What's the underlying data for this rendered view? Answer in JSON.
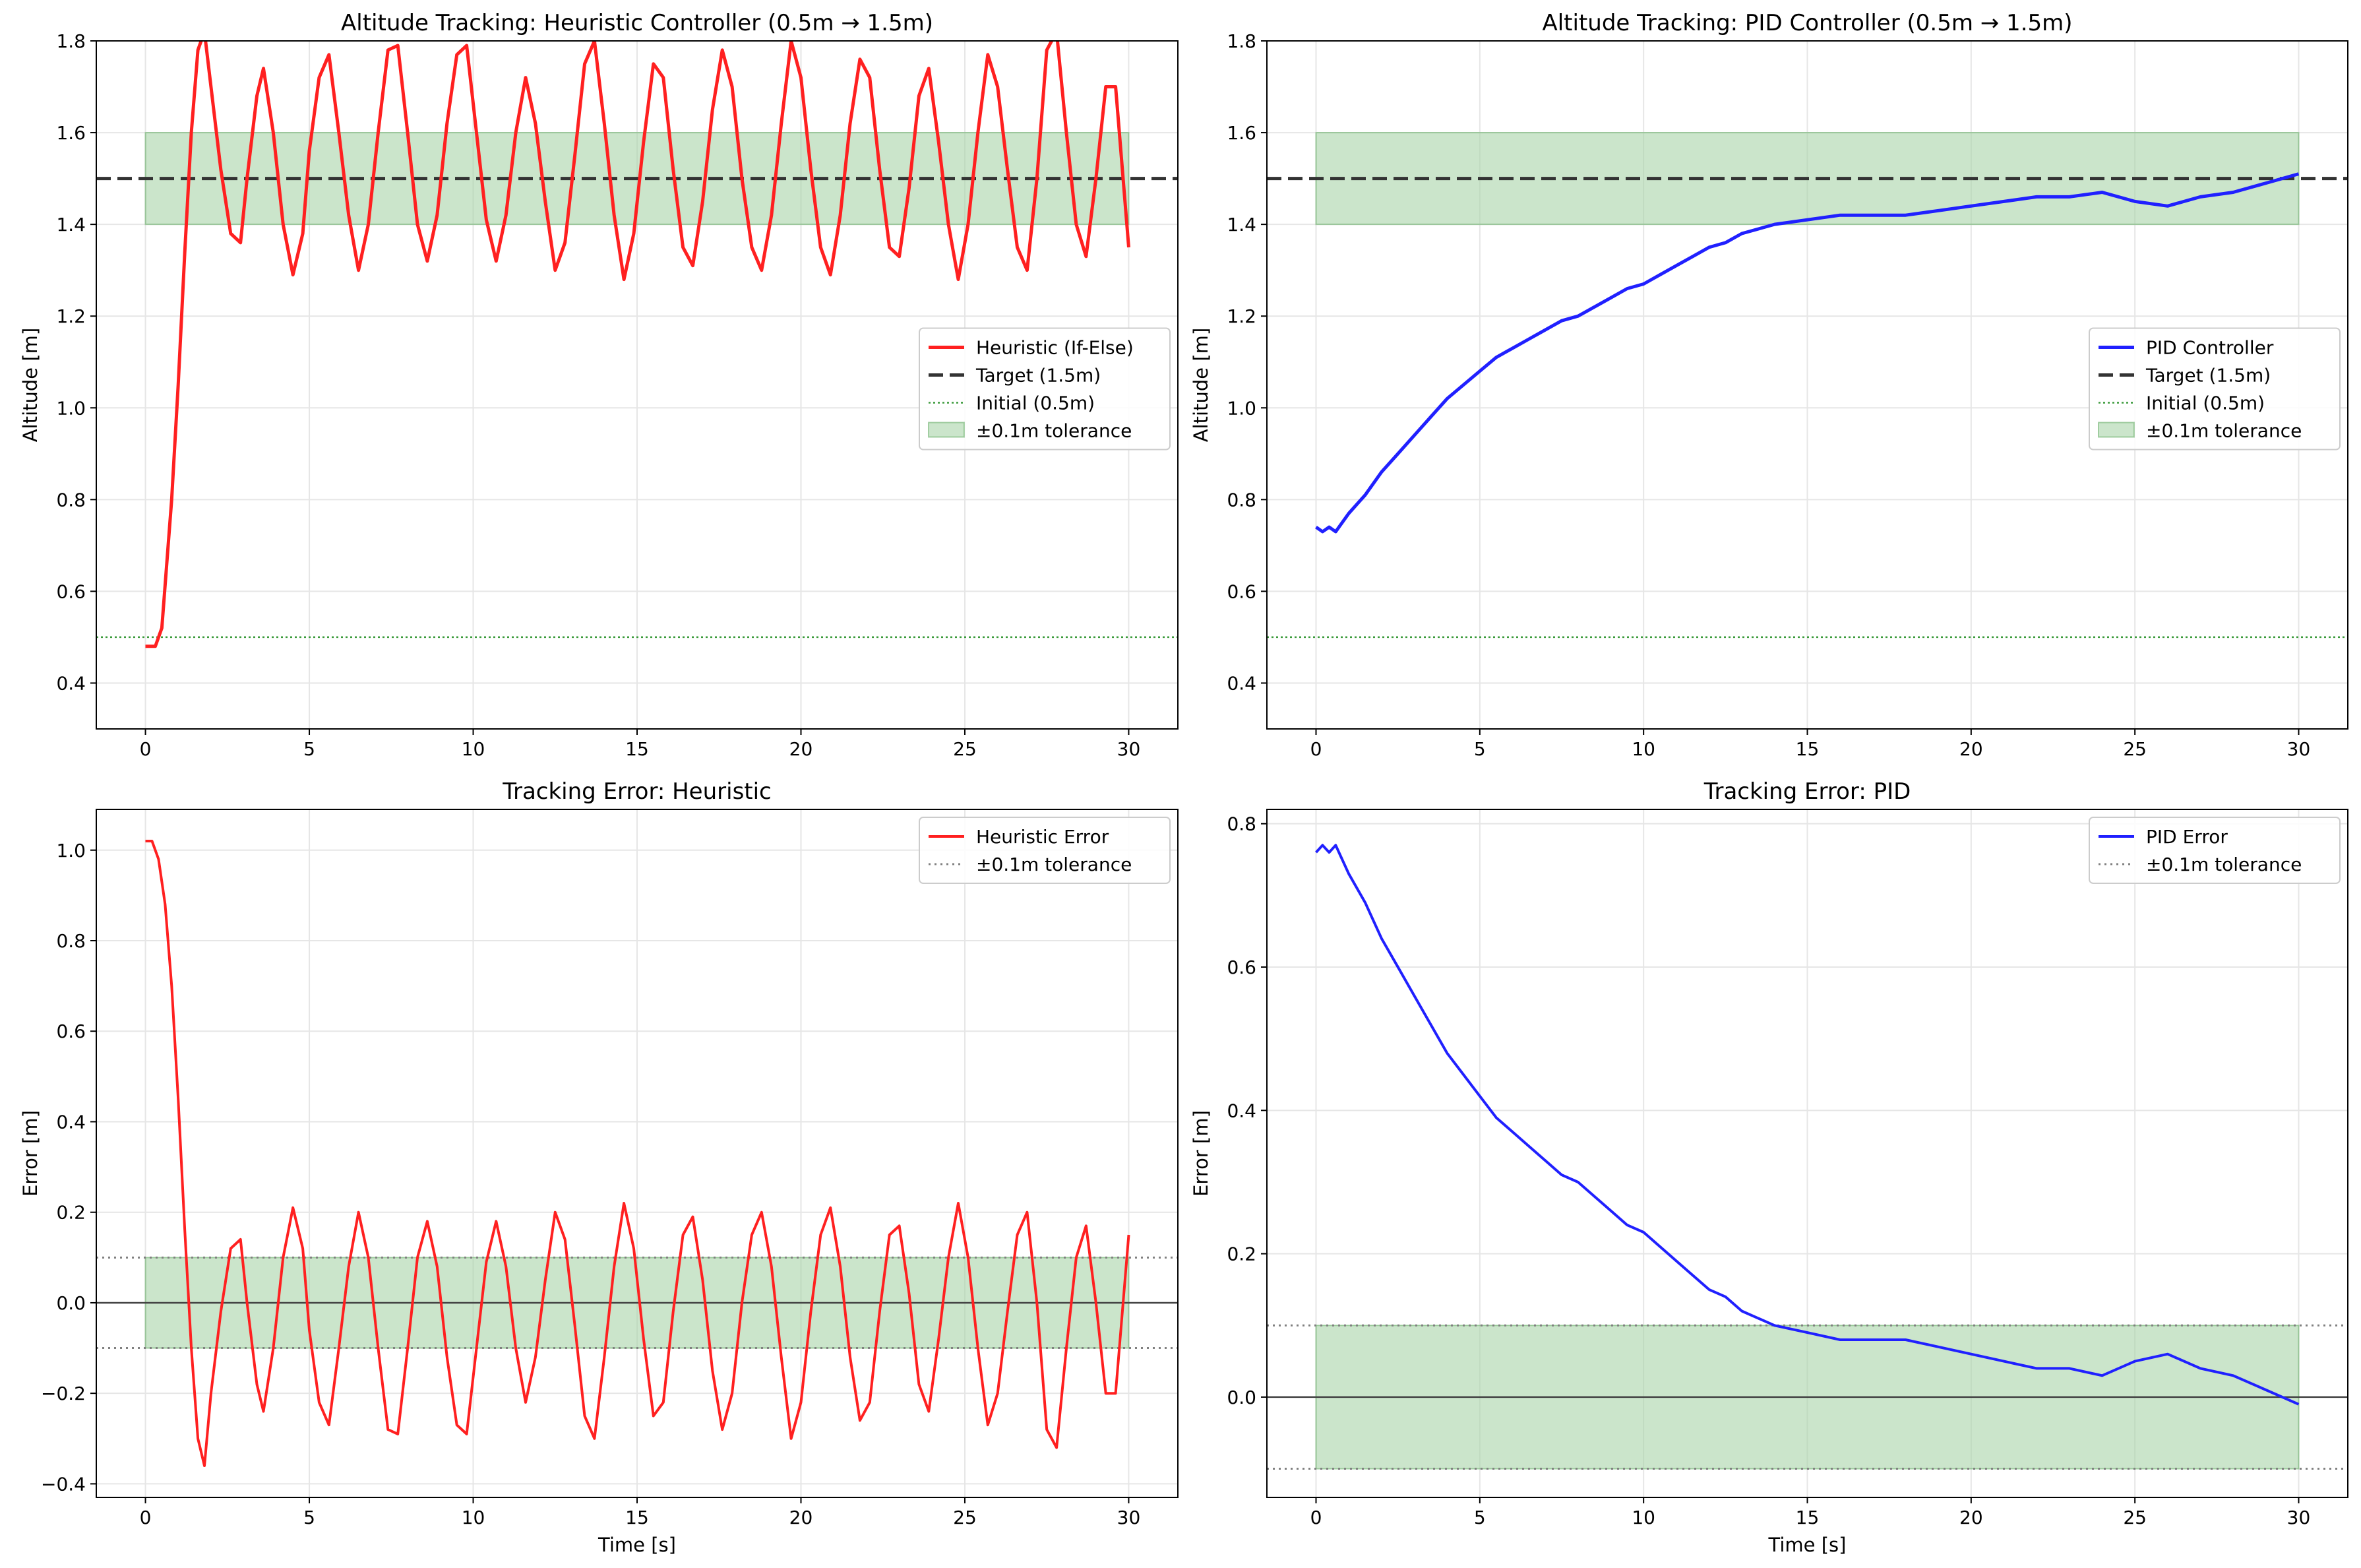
{
  "chart_data": [
    {
      "type": "line",
      "title": "Altitude Tracking: Heuristic Controller (0.5m → 1.5m)",
      "xlabel": "",
      "ylabel": "Altitude [m]",
      "xlim": [
        -1.5,
        31.5
      ],
      "ylim": [
        0.3,
        1.8
      ],
      "xticks": [
        "0",
        "5",
        "10",
        "15",
        "20",
        "25",
        "30"
      ],
      "yticks": [
        "0.4",
        "0.6",
        "0.8",
        "1.0",
        "1.2",
        "1.4",
        "1.6",
        "1.8"
      ],
      "grid": true,
      "legend_position": "center-right",
      "reference": {
        "target": 1.5,
        "initial": 0.5,
        "band": [
          1.4,
          1.6
        ],
        "band_x": [
          0,
          30
        ]
      },
      "series": [
        {
          "name": "Heuristic (If-Else)",
          "color": "#ff2020",
          "x": [
            0,
            0.3,
            0.5,
            0.8,
            1.0,
            1.2,
            1.4,
            1.6,
            1.8,
            2.0,
            2.3,
            2.6,
            2.9,
            3.1,
            3.4,
            3.6,
            3.9,
            4.2,
            4.5,
            4.8,
            5.0,
            5.3,
            5.6,
            5.9,
            6.2,
            6.5,
            6.8,
            7.1,
            7.4,
            7.7,
            8.0,
            8.3,
            8.6,
            8.9,
            9.2,
            9.5,
            9.8,
            10.1,
            10.4,
            10.7,
            11.0,
            11.3,
            11.6,
            11.9,
            12.2,
            12.5,
            12.8,
            13.1,
            13.4,
            13.7,
            14.0,
            14.3,
            14.6,
            14.9,
            15.2,
            15.5,
            15.8,
            16.1,
            16.4,
            16.7,
            17.0,
            17.3,
            17.6,
            17.9,
            18.2,
            18.5,
            18.8,
            19.1,
            19.4,
            19.7,
            20.0,
            20.3,
            20.6,
            20.9,
            21.2,
            21.5,
            21.8,
            22.1,
            22.4,
            22.7,
            23.0,
            23.3,
            23.6,
            23.9,
            24.2,
            24.5,
            24.8,
            25.1,
            25.4,
            25.7,
            26.0,
            26.3,
            26.6,
            26.9,
            27.2,
            27.5,
            27.8,
            28.1,
            28.4,
            28.7,
            29.0,
            29.3,
            29.6,
            30.0
          ],
          "y": [
            0.48,
            0.48,
            0.52,
            0.8,
            1.05,
            1.34,
            1.6,
            1.78,
            1.82,
            1.7,
            1.52,
            1.38,
            1.36,
            1.5,
            1.68,
            1.74,
            1.6,
            1.4,
            1.29,
            1.38,
            1.56,
            1.72,
            1.77,
            1.6,
            1.42,
            1.3,
            1.4,
            1.6,
            1.78,
            1.79,
            1.6,
            1.4,
            1.32,
            1.42,
            1.62,
            1.77,
            1.79,
            1.6,
            1.41,
            1.32,
            1.42,
            1.6,
            1.72,
            1.62,
            1.45,
            1.3,
            1.36,
            1.55,
            1.75,
            1.8,
            1.62,
            1.42,
            1.28,
            1.38,
            1.58,
            1.75,
            1.72,
            1.52,
            1.35,
            1.31,
            1.45,
            1.65,
            1.78,
            1.7,
            1.5,
            1.35,
            1.3,
            1.42,
            1.62,
            1.8,
            1.72,
            1.52,
            1.35,
            1.29,
            1.42,
            1.62,
            1.76,
            1.72,
            1.52,
            1.35,
            1.33,
            1.48,
            1.68,
            1.74,
            1.58,
            1.4,
            1.28,
            1.4,
            1.6,
            1.77,
            1.7,
            1.52,
            1.35,
            1.3,
            1.5,
            1.78,
            1.82,
            1.6,
            1.4,
            1.33,
            1.5,
            1.7,
            1.7,
            1.35
          ]
        },
        {
          "name": "Target (1.5m)",
          "color": "#333333"
        },
        {
          "name": "Initial (0.5m)",
          "color": "#3a9a3a"
        },
        {
          "name": "±0.1m tolerance",
          "color": "#a9d4a9"
        }
      ]
    },
    {
      "type": "line",
      "title": "Altitude Tracking: PID Controller (0.5m → 1.5m)",
      "xlabel": "",
      "ylabel": "Altitude [m]",
      "xlim": [
        -1.5,
        31.5
      ],
      "ylim": [
        0.3,
        1.8
      ],
      "xticks": [
        "0",
        "5",
        "10",
        "15",
        "20",
        "25",
        "30"
      ],
      "yticks": [
        "0.4",
        "0.6",
        "0.8",
        "1.0",
        "1.2",
        "1.4",
        "1.6",
        "1.8"
      ],
      "grid": true,
      "legend_position": "center-right",
      "reference": {
        "target": 1.5,
        "initial": 0.5,
        "band": [
          1.4,
          1.6
        ],
        "band_x": [
          0,
          30
        ]
      },
      "series": [
        {
          "name": "PID Controller",
          "color": "#2020ff",
          "x": [
            0,
            0.2,
            0.4,
            0.6,
            1,
            1.5,
            2,
            2.5,
            3,
            3.5,
            4,
            4.5,
            5,
            5.5,
            6,
            6.5,
            7,
            7.5,
            8,
            8.5,
            9,
            9.5,
            10,
            10.5,
            11,
            11.5,
            12,
            12.5,
            13,
            13.5,
            14,
            15,
            16,
            17,
            18,
            19,
            20,
            21,
            22,
            23,
            24,
            25,
            26,
            27,
            28,
            29,
            30
          ],
          "y": [
            0.74,
            0.73,
            0.74,
            0.73,
            0.77,
            0.81,
            0.86,
            0.9,
            0.94,
            0.98,
            1.02,
            1.05,
            1.08,
            1.11,
            1.13,
            1.15,
            1.17,
            1.19,
            1.2,
            1.22,
            1.24,
            1.26,
            1.27,
            1.29,
            1.31,
            1.33,
            1.35,
            1.36,
            1.38,
            1.39,
            1.4,
            1.41,
            1.42,
            1.42,
            1.42,
            1.43,
            1.44,
            1.45,
            1.46,
            1.46,
            1.47,
            1.45,
            1.44,
            1.46,
            1.47,
            1.49,
            1.51
          ]
        },
        {
          "name": "Target (1.5m)",
          "color": "#333333"
        },
        {
          "name": "Initial (0.5m)",
          "color": "#3a9a3a"
        },
        {
          "name": "±0.1m tolerance",
          "color": "#a9d4a9"
        }
      ]
    },
    {
      "type": "line",
      "title": "Tracking Error: Heuristic",
      "xlabel": "Time [s]",
      "ylabel": "Error [m]",
      "xlim": [
        -1.5,
        31.5
      ],
      "ylim": [
        -0.43,
        1.09
      ],
      "xticks": [
        "0",
        "5",
        "10",
        "15",
        "20",
        "25",
        "30"
      ],
      "yticks": [
        "−0.4",
        "−0.2",
        "0.0",
        "0.2",
        "0.4",
        "0.6",
        "0.8",
        "1.0"
      ],
      "grid": true,
      "legend_position": "top-right",
      "reference": {
        "zero": 0,
        "band": [
          -0.1,
          0.1
        ],
        "band_x": [
          0,
          30
        ]
      },
      "series": [
        {
          "name": "Heuristic Error",
          "color": "#ff2020",
          "x": [
            0,
            0.2,
            0.4,
            0.6,
            0.8,
            1.0,
            1.2,
            1.4,
            1.6,
            1.8,
            2.0,
            2.3,
            2.6,
            2.9,
            3.1,
            3.4,
            3.6,
            3.9,
            4.2,
            4.5,
            4.8,
            5.0,
            5.3,
            5.6,
            5.9,
            6.2,
            6.5,
            6.8,
            7.1,
            7.4,
            7.7,
            8.0,
            8.3,
            8.6,
            8.9,
            9.2,
            9.5,
            9.8,
            10.1,
            10.4,
            10.7,
            11.0,
            11.3,
            11.6,
            11.9,
            12.2,
            12.5,
            12.8,
            13.1,
            13.4,
            13.7,
            14.0,
            14.3,
            14.6,
            14.9,
            15.2,
            15.5,
            15.8,
            16.1,
            16.4,
            16.7,
            17.0,
            17.3,
            17.6,
            17.9,
            18.2,
            18.5,
            18.8,
            19.1,
            19.4,
            19.7,
            20.0,
            20.3,
            20.6,
            20.9,
            21.2,
            21.5,
            21.8,
            22.1,
            22.4,
            22.7,
            23.0,
            23.3,
            23.6,
            23.9,
            24.2,
            24.5,
            24.8,
            25.1,
            25.4,
            25.7,
            26.0,
            26.3,
            26.6,
            26.9,
            27.2,
            27.5,
            27.8,
            28.1,
            28.4,
            28.7,
            29.0,
            29.3,
            29.6,
            30.0
          ],
          "y": [
            1.02,
            1.02,
            0.98,
            0.88,
            0.7,
            0.45,
            0.16,
            -0.1,
            -0.3,
            -0.36,
            -0.2,
            -0.02,
            0.12,
            0.14,
            0.0,
            -0.18,
            -0.24,
            -0.1,
            0.1,
            0.21,
            0.12,
            -0.06,
            -0.22,
            -0.27,
            -0.1,
            0.08,
            0.2,
            0.1,
            -0.1,
            -0.28,
            -0.29,
            -0.1,
            0.1,
            0.18,
            0.08,
            -0.12,
            -0.27,
            -0.29,
            -0.1,
            0.09,
            0.18,
            0.08,
            -0.1,
            -0.22,
            -0.12,
            0.05,
            0.2,
            0.14,
            -0.05,
            -0.25,
            -0.3,
            -0.12,
            0.08,
            0.22,
            0.12,
            -0.08,
            -0.25,
            -0.22,
            -0.02,
            0.15,
            0.19,
            0.05,
            -0.15,
            -0.28,
            -0.2,
            0.0,
            0.15,
            0.2,
            0.08,
            -0.12,
            -0.3,
            -0.22,
            -0.02,
            0.15,
            0.21,
            0.08,
            -0.12,
            -0.26,
            -0.22,
            -0.02,
            0.15,
            0.17,
            0.02,
            -0.18,
            -0.24,
            -0.08,
            0.1,
            0.22,
            0.1,
            -0.1,
            -0.27,
            -0.2,
            -0.02,
            0.15,
            0.2,
            0.0,
            -0.28,
            -0.32,
            -0.1,
            0.1,
            0.17,
            0.0,
            -0.2,
            -0.2,
            0.15
          ]
        },
        {
          "name": "±0.1m tolerance",
          "color": "#808080"
        }
      ]
    },
    {
      "type": "line",
      "title": "Tracking Error: PID",
      "xlabel": "Time [s]",
      "ylabel": "Error [m]",
      "xlim": [
        -1.5,
        31.5
      ],
      "ylim": [
        -0.14,
        0.82
      ],
      "xticks": [
        "0",
        "5",
        "10",
        "15",
        "20",
        "25",
        "30"
      ],
      "yticks": [
        "0.0",
        "0.2",
        "0.4",
        "0.6",
        "0.8"
      ],
      "grid": true,
      "legend_position": "top-right",
      "reference": {
        "zero": 0,
        "band": [
          -0.1,
          0.1
        ],
        "band_x": [
          0,
          30
        ]
      },
      "series": [
        {
          "name": "PID Error",
          "color": "#2020ff",
          "x": [
            0,
            0.2,
            0.4,
            0.6,
            1,
            1.5,
            2,
            2.5,
            3,
            3.5,
            4,
            4.5,
            5,
            5.5,
            6,
            6.5,
            7,
            7.5,
            8,
            8.5,
            9,
            9.5,
            10,
            10.5,
            11,
            11.5,
            12,
            12.5,
            13,
            13.5,
            14,
            15,
            16,
            17,
            18,
            19,
            20,
            21,
            22,
            23,
            24,
            25,
            26,
            27,
            28,
            29,
            30
          ],
          "y": [
            0.76,
            0.77,
            0.76,
            0.77,
            0.73,
            0.69,
            0.64,
            0.6,
            0.56,
            0.52,
            0.48,
            0.45,
            0.42,
            0.39,
            0.37,
            0.35,
            0.33,
            0.31,
            0.3,
            0.28,
            0.26,
            0.24,
            0.23,
            0.21,
            0.19,
            0.17,
            0.15,
            0.14,
            0.12,
            0.11,
            0.1,
            0.09,
            0.08,
            0.08,
            0.08,
            0.07,
            0.06,
            0.05,
            0.04,
            0.04,
            0.03,
            0.05,
            0.06,
            0.04,
            0.03,
            0.01,
            -0.01
          ]
        },
        {
          "name": "±0.1m tolerance",
          "color": "#808080"
        }
      ]
    }
  ]
}
